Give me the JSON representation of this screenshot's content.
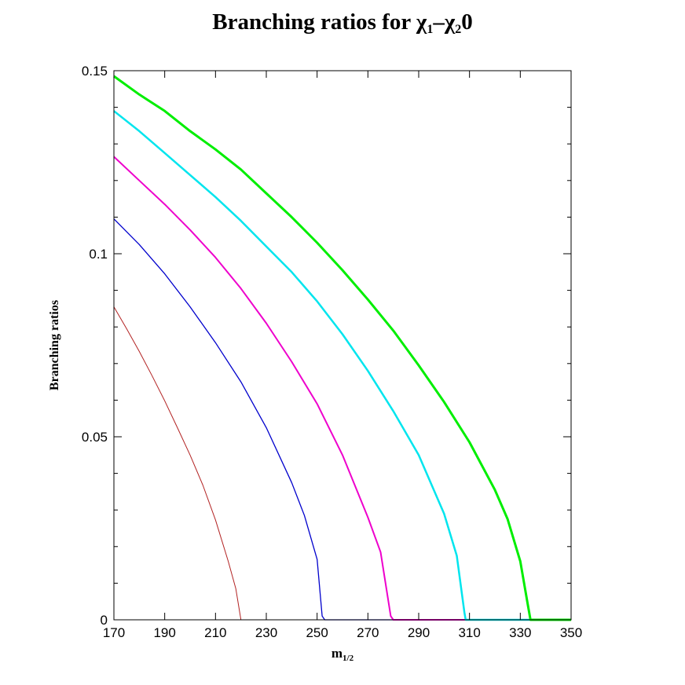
{
  "chart_data": {
    "type": "line",
    "title": {
      "prefix": "Branching ratios for ",
      "chi": "χ",
      "sub1": "1",
      "dash": "–",
      "sub2": "2",
      "suffix": "0"
    },
    "xlabel": {
      "main": "m",
      "sub": "1/2"
    },
    "ylabel": "Branching ratios",
    "xlim": [
      170,
      350
    ],
    "ylim": [
      0,
      0.15
    ],
    "xticks": [
      {
        "value": 170,
        "label": "170"
      },
      {
        "value": 190,
        "label": "190"
      },
      {
        "value": 210,
        "label": "210"
      },
      {
        "value": 230,
        "label": "230"
      },
      {
        "value": 250,
        "label": "250"
      },
      {
        "value": 270,
        "label": "270"
      },
      {
        "value": 290,
        "label": "290"
      },
      {
        "value": 310,
        "label": "310"
      },
      {
        "value": 330,
        "label": "330"
      },
      {
        "value": 350,
        "label": "350"
      }
    ],
    "yticks": [
      {
        "value": 0,
        "label": "0"
      },
      {
        "value": 0.05,
        "label": "0.05"
      },
      {
        "value": 0.1,
        "label": "0.1"
      },
      {
        "value": 0.15,
        "label": "0.15"
      }
    ],
    "yminor_step": 0.01,
    "grid": false,
    "series": [
      {
        "color": "#b22222",
        "width": 1,
        "points": [
          [
            170,
            0.0855
          ],
          [
            175,
            0.0795
          ],
          [
            180,
            0.0733
          ],
          [
            185,
            0.0667
          ],
          [
            190,
            0.0598
          ],
          [
            195,
            0.0525
          ],
          [
            200,
            0.045
          ],
          [
            205,
            0.0368
          ],
          [
            210,
            0.0273
          ],
          [
            215,
            0.016
          ],
          [
            218,
            0.0085
          ],
          [
            220,
            0
          ],
          [
            350,
            0
          ]
        ]
      },
      {
        "color": "#0000cc",
        "width": 1.3,
        "points": [
          [
            170,
            0.1095
          ],
          [
            180,
            0.1025
          ],
          [
            190,
            0.0945
          ],
          [
            200,
            0.0855
          ],
          [
            210,
            0.0757
          ],
          [
            220,
            0.065
          ],
          [
            230,
            0.0525
          ],
          [
            240,
            0.0375
          ],
          [
            245,
            0.0285
          ],
          [
            250,
            0.0165
          ],
          [
            252,
            0.001
          ],
          [
            253,
            0
          ],
          [
            350,
            0
          ]
        ]
      },
      {
        "color": "#ee00cc",
        "width": 2,
        "points": [
          [
            170,
            0.1265
          ],
          [
            180,
            0.12
          ],
          [
            190,
            0.1135
          ],
          [
            200,
            0.1065
          ],
          [
            210,
            0.099
          ],
          [
            220,
            0.0905
          ],
          [
            230,
            0.081
          ],
          [
            240,
            0.0705
          ],
          [
            250,
            0.059
          ],
          [
            260,
            0.045
          ],
          [
            270,
            0.028
          ],
          [
            275,
            0.0185
          ],
          [
            279,
            0.001
          ],
          [
            280,
            0
          ],
          [
            350,
            0
          ]
        ]
      },
      {
        "color": "#00e5ee",
        "width": 2.5,
        "points": [
          [
            170,
            0.139
          ],
          [
            180,
            0.1335
          ],
          [
            190,
            0.1275
          ],
          [
            200,
            0.1215
          ],
          [
            210,
            0.1155
          ],
          [
            220,
            0.109
          ],
          [
            230,
            0.102
          ],
          [
            240,
            0.095
          ],
          [
            250,
            0.087
          ],
          [
            260,
            0.078
          ],
          [
            270,
            0.068
          ],
          [
            280,
            0.057
          ],
          [
            290,
            0.045
          ],
          [
            300,
            0.029
          ],
          [
            305,
            0.0175
          ],
          [
            308,
            0.002
          ],
          [
            308.5,
            0
          ],
          [
            350,
            0
          ]
        ]
      },
      {
        "color": "#00ee00",
        "width": 3,
        "points": [
          [
            170,
            0.1485
          ],
          [
            180,
            0.1435
          ],
          [
            190,
            0.139
          ],
          [
            200,
            0.1335
          ],
          [
            210,
            0.1285
          ],
          [
            220,
            0.123
          ],
          [
            230,
            0.1165
          ],
          [
            240,
            0.11
          ],
          [
            250,
            0.103
          ],
          [
            260,
            0.0955
          ],
          [
            270,
            0.0875
          ],
          [
            280,
            0.079
          ],
          [
            290,
            0.0695
          ],
          [
            300,
            0.0595
          ],
          [
            310,
            0.0485
          ],
          [
            320,
            0.0355
          ],
          [
            325,
            0.0275
          ],
          [
            330,
            0.016
          ],
          [
            333,
            0.004
          ],
          [
            334,
            0
          ],
          [
            350,
            0
          ]
        ]
      }
    ]
  }
}
